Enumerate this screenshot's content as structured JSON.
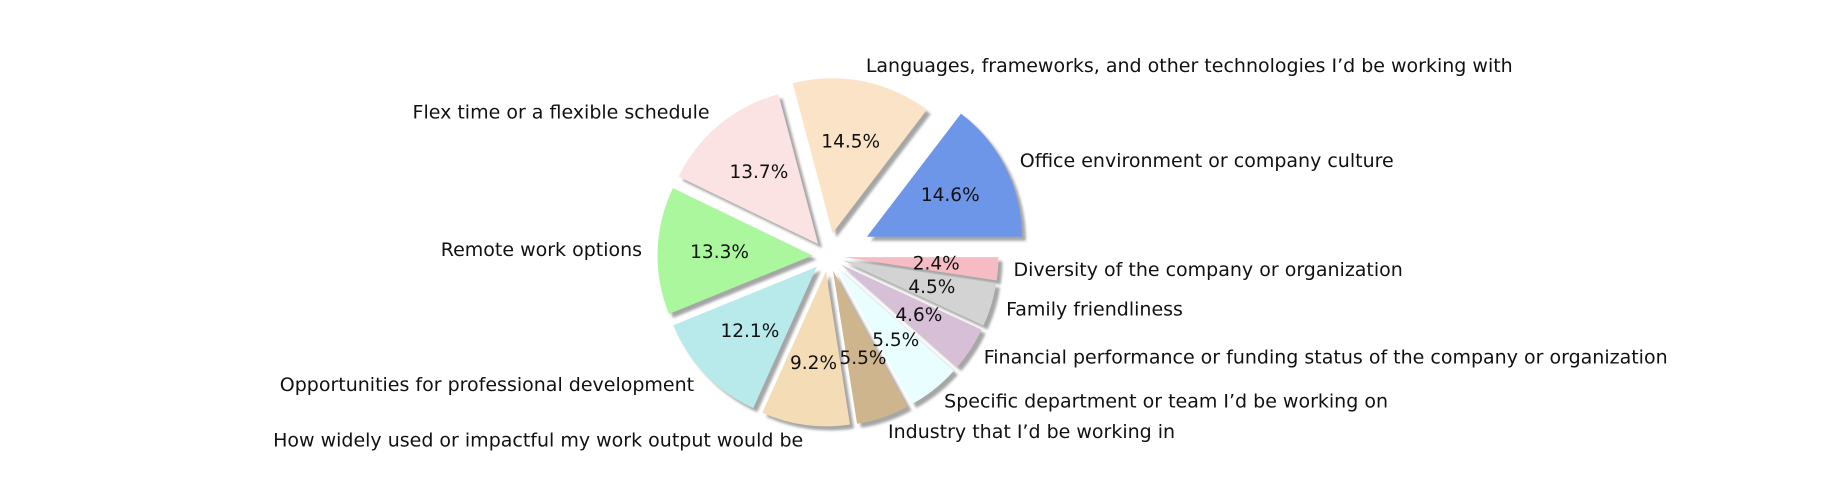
{
  "chart_data": {
    "type": "pie",
    "title": "",
    "startangle_deg": 0,
    "direction": "counterclockwise",
    "shadow": true,
    "exploded": true,
    "slices": [
      {
        "label": "Office environment or company culture",
        "pct_text": "14.6%",
        "value": 14.6,
        "color": "#6d95e8"
      },
      {
        "label": "Languages, frameworks, and other technologies I’d be working with",
        "pct_text": "14.5%",
        "value": 14.5,
        "color": "#fbe3c8"
      },
      {
        "label": "Flex time or a flexible schedule",
        "pct_text": "13.7%",
        "value": 13.7,
        "color": "#fae3e2"
      },
      {
        "label": "Remote work options",
        "pct_text": "13.3%",
        "value": 13.3,
        "color": "#aaf79e"
      },
      {
        "label": "Opportunities for professional development",
        "pct_text": "12.1%",
        "value": 12.1,
        "color": "#b8e9eb"
      },
      {
        "label": "How widely used or impactful my work output would be",
        "pct_text": "9.2%",
        "value": 9.2,
        "color": "#f3dcb6"
      },
      {
        "label": "Industry that I’d be working in",
        "pct_text": "5.5%",
        "value": 5.5,
        "color": "#cfb58d"
      },
      {
        "label": "Specific department or team I’d be working on",
        "pct_text": "5.5%",
        "value": 5.5,
        "color": "#e9feff"
      },
      {
        "label": "Financial performance or funding status of the company or organization",
        "pct_text": "4.6%",
        "value": 4.6,
        "color": "#d8bfd8"
      },
      {
        "label": "Family friendliness",
        "pct_text": "4.5%",
        "value": 4.5,
        "color": "#d3d3d3"
      },
      {
        "label": "Diversity of the company or organization",
        "pct_text": "2.4%",
        "value": 2.4,
        "color": "#f6bcc4"
      }
    ]
  }
}
